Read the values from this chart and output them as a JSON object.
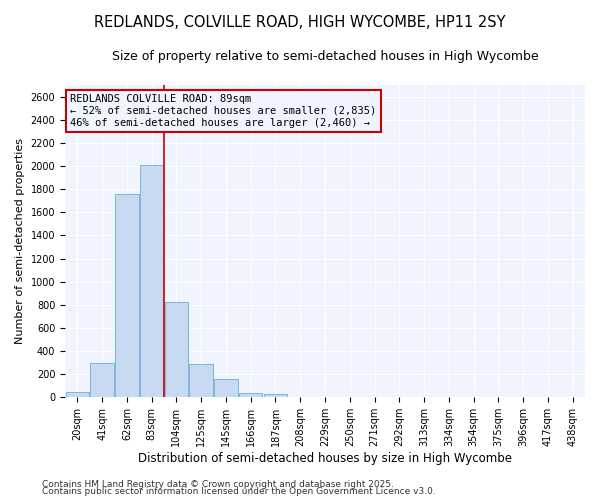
{
  "title": "REDLANDS, COLVILLE ROAD, HIGH WYCOMBE, HP11 2SY",
  "subtitle": "Size of property relative to semi-detached houses in High Wycombe",
  "xlabel": "Distribution of semi-detached houses by size in High Wycombe",
  "ylabel": "Number of semi-detached properties",
  "categories": [
    "20sqm",
    "41sqm",
    "62sqm",
    "83sqm",
    "104sqm",
    "125sqm",
    "145sqm",
    "166sqm",
    "187sqm",
    "208sqm",
    "229sqm",
    "250sqm",
    "271sqm",
    "292sqm",
    "313sqm",
    "334sqm",
    "354sqm",
    "375sqm",
    "396sqm",
    "417sqm",
    "438sqm"
  ],
  "values": [
    50,
    300,
    1760,
    2010,
    820,
    290,
    155,
    40,
    25,
    0,
    0,
    0,
    0,
    0,
    0,
    0,
    0,
    0,
    0,
    0,
    0
  ],
  "bar_color": "#c8daf2",
  "bar_edge_color": "#6baed6",
  "annotation_title": "REDLANDS COLVILLE ROAD: 89sqm",
  "annotation_line1": "← 52% of semi-detached houses are smaller (2,835)",
  "annotation_line2": "46% of semi-detached houses are larger (2,460) →",
  "annotation_box_color": "#cc0000",
  "red_line_x": 3.5,
  "ylim": [
    0,
    2700
  ],
  "yticks": [
    0,
    200,
    400,
    600,
    800,
    1000,
    1200,
    1400,
    1600,
    1800,
    2000,
    2200,
    2400,
    2600
  ],
  "background_color": "#ffffff",
  "plot_bg_color": "#f0f4ff",
  "grid_color": "#ffffff",
  "footer1": "Contains HM Land Registry data © Crown copyright and database right 2025.",
  "footer2": "Contains public sector information licensed under the Open Government Licence v3.0.",
  "title_fontsize": 10.5,
  "subtitle_fontsize": 9,
  "xlabel_fontsize": 8.5,
  "ylabel_fontsize": 8,
  "tick_fontsize": 7,
  "annotation_fontsize": 7.5,
  "footer_fontsize": 6.5
}
